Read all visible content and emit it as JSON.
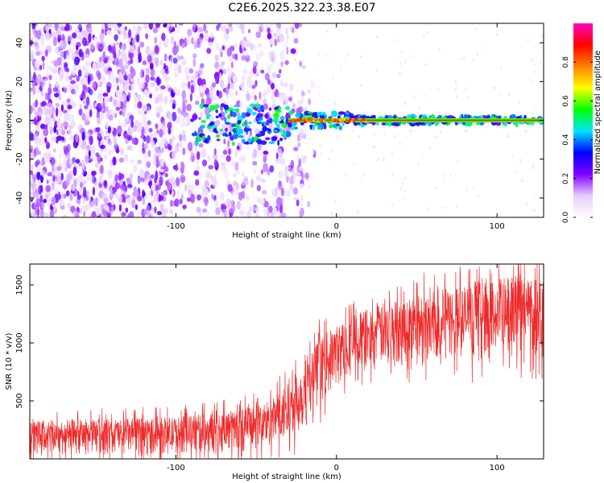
{
  "figure": {
    "title": "C2E6.2025.322.23.38.E07"
  },
  "chart_data": [
    {
      "type": "heatmap",
      "title": "C2E6.2025.322.23.38.E07",
      "xlabel": "Height of straight line (km)",
      "ylabel": "Frequency (Hz)",
      "xlim": [
        -191,
        129
      ],
      "ylim": [
        -50,
        50
      ],
      "xticks": [
        -100,
        0,
        100
      ],
      "xtick_labels": [
        "-100",
        "0",
        "100"
      ],
      "yticks": [
        -40,
        -20,
        0,
        20,
        40
      ],
      "ytick_labels": [
        "-40",
        "-20",
        "0",
        "20",
        "40"
      ],
      "description_values": {
        "ridge_frequency_hz": 0,
        "ridge_start_km": -90,
        "broadband_noise_until_km": -35
      },
      "colorbar": {
        "label": "Normalized spectral amplitude",
        "range": [
          0,
          1
        ],
        "ticks": [
          0.0,
          0.2,
          0.4,
          0.6,
          0.8
        ],
        "tick_labels": [
          "0.0",
          "0.2",
          "0.4",
          "0.6",
          "0.8"
        ],
        "colormap": [
          "#ffffff",
          "#e6ccff",
          "#8000ff",
          "#0000ff",
          "#00e5ff",
          "#00ff00",
          "#ffff00",
          "#ff8000",
          "#ff0000",
          "#ff00c0"
        ]
      }
    },
    {
      "type": "line",
      "xlabel": "Height of straight line (km)",
      "ylabel": "SNR (10 * v/v)",
      "xlim": [
        -191,
        129
      ],
      "ylim": [
        0,
        1680
      ],
      "xticks": [
        -100,
        0,
        100
      ],
      "xtick_labels": [
        "-100",
        "0",
        "100"
      ],
      "yticks": [
        500,
        1000,
        1500
      ],
      "ytick_labels": [
        "500",
        "1000",
        "1500"
      ],
      "color": "#ee2b2b",
      "trend": {
        "x": [
          -191,
          -100,
          -60,
          -40,
          -30,
          -20,
          -10,
          0,
          10,
          30,
          60,
          100,
          129
        ],
        "low": [
          30,
          40,
          60,
          80,
          130,
          250,
          480,
          620,
          720,
          800,
          840,
          860,
          880
        ],
        "high": [
          330,
          360,
          430,
          520,
          650,
          850,
          1050,
          1150,
          1250,
          1350,
          1450,
          1550,
          1620
        ]
      }
    }
  ]
}
